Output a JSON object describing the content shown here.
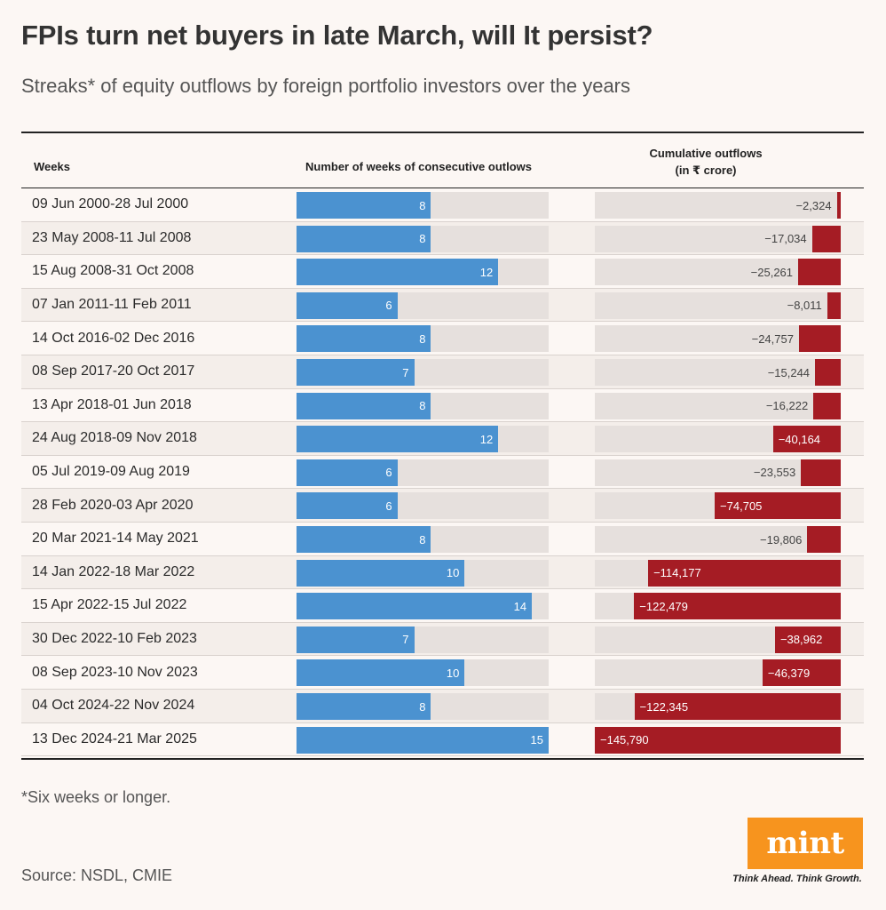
{
  "header": {
    "title": "FPIs turn net buyers in late March, will It persist?",
    "subtitle": "Streaks* of equity outflows by foreign portfolio investors over the years"
  },
  "table_headers": {
    "weeks": "Weeks",
    "num_weeks": "Number of weeks of consecutive outlows",
    "cumulative_line1": "Cumulative outflows",
    "cumulative_line2": "(in ₹ crore)"
  },
  "chart_data": {
    "type": "bar",
    "categories": [
      "09 Jun 2000-28 Jul 2000",
      "23 May 2008-11 Jul 2008",
      "15 Aug 2008-31 Oct 2008",
      "07 Jan 2011-11 Feb 2011",
      "14 Oct 2016-02 Dec 2016",
      "08 Sep 2017-20 Oct 2017",
      "13 Apr 2018-01 Jun 2018",
      "24 Aug 2018-09 Nov 2018",
      "05 Jul 2019-09 Aug 2019",
      "28 Feb 2020-03 Apr 2020",
      "20 Mar 2021-14 May 2021",
      "14 Jan 2022-18 Mar 2022",
      "15 Apr 2022-15 Jul 2022",
      "30 Dec 2022-10 Feb 2023",
      "08 Sep 2023-10 Nov 2023",
      "04 Oct 2024-22 Nov 2024",
      "13 Dec 2024-21 Mar 2025"
    ],
    "series": [
      {
        "name": "Number of weeks of consecutive outlows",
        "values": [
          8,
          8,
          12,
          6,
          8,
          7,
          8,
          12,
          6,
          6,
          8,
          10,
          14,
          7,
          10,
          8,
          15
        ],
        "labels": [
          "8",
          "8",
          "12",
          "6",
          "8",
          "7",
          "8",
          "12",
          "6",
          "6",
          "8",
          "10",
          "14",
          "7",
          "10",
          "8",
          "15"
        ],
        "color": "#4b92d0",
        "xlim": [
          0,
          15
        ]
      },
      {
        "name": "Cumulative outflows (in ₹ crore)",
        "values": [
          -2324,
          -17034,
          -25261,
          -8011,
          -24757,
          -15244,
          -16222,
          -40164,
          -23553,
          -74705,
          -19806,
          -114177,
          -122479,
          -38962,
          -46379,
          -122345,
          -145790
        ],
        "labels": [
          "−2,324",
          "−17,034",
          "−25,261",
          "−8,011",
          "−24,757",
          "−15,244",
          "−16,222",
          "−40,164",
          "−23,553",
          "−74,705",
          "−19,806",
          "−114,177",
          "−122,479",
          "−38,962",
          "−46,379",
          "−122,345",
          "−145,790"
        ],
        "color": "#a51c24",
        "xlim": [
          -145790,
          0
        ]
      }
    ],
    "colors": {
      "background": "#fcf7f4",
      "track": "#e6e0dd",
      "row_alt": "#f4eeea"
    }
  },
  "footer": {
    "footnote": "*Six weeks or longer.",
    "source": "Source: NSDL, CMIE",
    "logo_text": "mint",
    "tagline": "Think Ahead. Think Growth."
  }
}
